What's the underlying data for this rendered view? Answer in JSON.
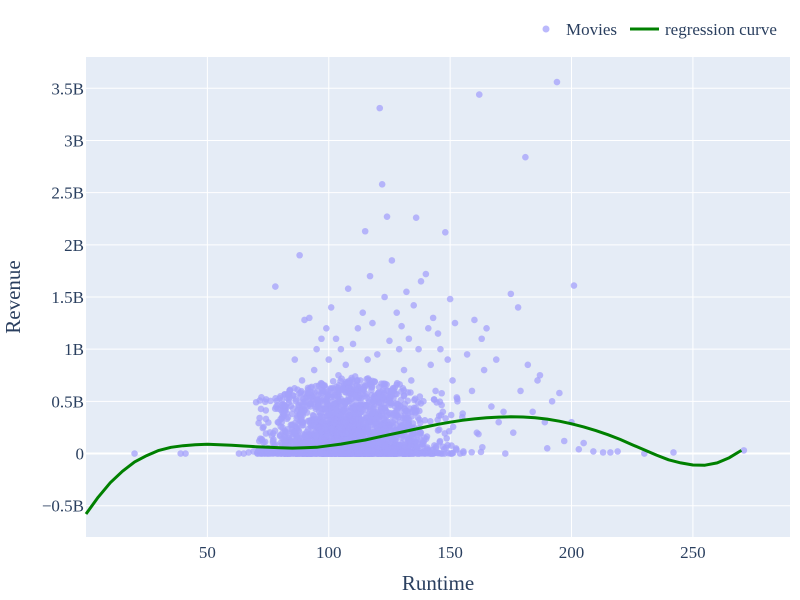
{
  "chart_data": {
    "type": "scatter",
    "title": "",
    "xlabel": "Runtime",
    "ylabel": "Revenue",
    "xlim": [
      0,
      290
    ],
    "ylim": [
      -800000000,
      3800000000
    ],
    "x_ticks": [
      {
        "value": 50,
        "label": "50"
      },
      {
        "value": 100,
        "label": "100"
      },
      {
        "value": 150,
        "label": "150"
      },
      {
        "value": 200,
        "label": "200"
      },
      {
        "value": 250,
        "label": "250"
      }
    ],
    "y_ticks": [
      {
        "value": -500000000,
        "label": "−0.5B"
      },
      {
        "value": 0,
        "label": "0"
      },
      {
        "value": 500000000,
        "label": "0.5B"
      },
      {
        "value": 1000000000,
        "label": "1B"
      },
      {
        "value": 1500000000,
        "label": "1.5B"
      },
      {
        "value": 2000000000,
        "label": "2B"
      },
      {
        "value": 2500000000,
        "label": "2.5B"
      },
      {
        "value": 3000000000,
        "label": "3B"
      },
      {
        "value": 3500000000,
        "label": "3.5B"
      }
    ],
    "grid": true,
    "legend": {
      "position": "top-right",
      "orientation": "horizontal"
    },
    "colors": {
      "plot_bg": "#e5ecf6",
      "grid": "#ffffff",
      "points": "#a4a2fb",
      "curve": "#008000",
      "text": "#2a3f5f"
    },
    "series": [
      {
        "name": "Movies",
        "kind": "markers",
        "points": [
          [
            20,
            0
          ],
          [
            39,
            0
          ],
          [
            41,
            0
          ],
          [
            63,
            0
          ],
          [
            65,
            0
          ],
          [
            67,
            0.01
          ],
          [
            69,
            0.02
          ],
          [
            71,
            0.03
          ],
          [
            73,
            0.01
          ],
          [
            75,
            0.05
          ],
          [
            77,
            0.12
          ],
          [
            78,
            1.6
          ],
          [
            79,
            0.3
          ],
          [
            80,
            0.02
          ],
          [
            81,
            0.2
          ],
          [
            82,
            0.45
          ],
          [
            83,
            0.05
          ],
          [
            84,
            0.6
          ],
          [
            85,
            0.38
          ],
          [
            86,
            0.9
          ],
          [
            87,
            0.15
          ],
          [
            88,
            1.9
          ],
          [
            89,
            0.7
          ],
          [
            90,
            1.28
          ],
          [
            91,
            0.55
          ],
          [
            92,
            1.3
          ],
          [
            93,
            0.25
          ],
          [
            94,
            0.8
          ],
          [
            95,
            1.0
          ],
          [
            96,
            0.4
          ],
          [
            97,
            1.1
          ],
          [
            98,
            0.65
          ],
          [
            99,
            1.2
          ],
          [
            100,
            0.9
          ],
          [
            101,
            1.4
          ],
          [
            102,
            0.3
          ],
          [
            103,
            1.1
          ],
          [
            104,
            0.75
          ],
          [
            105,
            1.0
          ],
          [
            106,
            0.5
          ],
          [
            107,
            0.85
          ],
          [
            108,
            1.58
          ],
          [
            109,
            0.6
          ],
          [
            110,
            1.05
          ],
          [
            111,
            0.4
          ],
          [
            112,
            1.2
          ],
          [
            113,
            0.7
          ],
          [
            114,
            1.35
          ],
          [
            115,
            2.13
          ],
          [
            116,
            0.9
          ],
          [
            117,
            1.7
          ],
          [
            118,
            1.25
          ],
          [
            119,
            0.55
          ],
          [
            120,
            0.95
          ],
          [
            121,
            3.31
          ],
          [
            122,
            2.58
          ],
          [
            123,
            1.5
          ],
          [
            124,
            2.27
          ],
          [
            125,
            1.08
          ],
          [
            126,
            1.85
          ],
          [
            127,
            0.6
          ],
          [
            128,
            1.35
          ],
          [
            129,
            1.0
          ],
          [
            130,
            1.22
          ],
          [
            131,
            0.8
          ],
          [
            132,
            1.55
          ],
          [
            133,
            1.1
          ],
          [
            134,
            0.7
          ],
          [
            135,
            1.42
          ],
          [
            136,
            2.26
          ],
          [
            137,
            1.0
          ],
          [
            138,
            1.65
          ],
          [
            139,
            0.5
          ],
          [
            140,
            1.72
          ],
          [
            141,
            1.2
          ],
          [
            142,
            0.85
          ],
          [
            143,
            1.3
          ],
          [
            144,
            0.6
          ],
          [
            145,
            1.15
          ],
          [
            146,
            1.0
          ],
          [
            147,
            0.4
          ],
          [
            148,
            2.12
          ],
          [
            149,
            0.9
          ],
          [
            150,
            1.48
          ],
          [
            151,
            0.7
          ],
          [
            152,
            1.25
          ],
          [
            153,
            0.5
          ],
          [
            155,
            0.35
          ],
          [
            157,
            0.95
          ],
          [
            159,
            0.6
          ],
          [
            160,
            1.28
          ],
          [
            161,
            0.2
          ],
          [
            162,
            3.44
          ],
          [
            163,
            1.1
          ],
          [
            164,
            0.8
          ],
          [
            165,
            1.2
          ],
          [
            167,
            0.45
          ],
          [
            169,
            0.9
          ],
          [
            170,
            0.3
          ],
          [
            172,
            0.4
          ],
          [
            175,
            1.53
          ],
          [
            176,
            0.2
          ],
          [
            178,
            1.4
          ],
          [
            179,
            0.6
          ],
          [
            181,
            2.84
          ],
          [
            182,
            0.85
          ],
          [
            184,
            0.4
          ],
          [
            186,
            0.7
          ],
          [
            187,
            0.75
          ],
          [
            189,
            0.3
          ],
          [
            190,
            0.05
          ],
          [
            192,
            0.5
          ],
          [
            194,
            3.56
          ],
          [
            195,
            0.58
          ],
          [
            197,
            0.12
          ],
          [
            200,
            0.3
          ],
          [
            201,
            1.61
          ],
          [
            203,
            0.04
          ],
          [
            205,
            0.1
          ],
          [
            209,
            0.02
          ],
          [
            213,
            0.01
          ],
          [
            216,
            0.01
          ],
          [
            219,
            0.02
          ],
          [
            230,
            0
          ],
          [
            242,
            0.01
          ],
          [
            271,
            0.03
          ]
        ]
      },
      {
        "name": "regression curve",
        "kind": "line",
        "points": [
          [
            0,
            -0.58
          ],
          [
            5,
            -0.42
          ],
          [
            10,
            -0.28
          ],
          [
            15,
            -0.17
          ],
          [
            20,
            -0.08
          ],
          [
            25,
            -0.02
          ],
          [
            30,
            0.03
          ],
          [
            35,
            0.06
          ],
          [
            40,
            0.075
          ],
          [
            45,
            0.085
          ],
          [
            50,
            0.088
          ],
          [
            55,
            0.085
          ],
          [
            60,
            0.08
          ],
          [
            65,
            0.072
          ],
          [
            70,
            0.065
          ],
          [
            75,
            0.06
          ],
          [
            80,
            0.055
          ],
          [
            85,
            0.052
          ],
          [
            90,
            0.055
          ],
          [
            95,
            0.06
          ],
          [
            100,
            0.075
          ],
          [
            105,
            0.09
          ],
          [
            110,
            0.11
          ],
          [
            115,
            0.13
          ],
          [
            120,
            0.155
          ],
          [
            125,
            0.18
          ],
          [
            130,
            0.205
          ],
          [
            135,
            0.23
          ],
          [
            140,
            0.255
          ],
          [
            145,
            0.28
          ],
          [
            150,
            0.3
          ],
          [
            155,
            0.318
          ],
          [
            160,
            0.332
          ],
          [
            165,
            0.342
          ],
          [
            170,
            0.349
          ],
          [
            175,
            0.352
          ],
          [
            180,
            0.35
          ],
          [
            185,
            0.343
          ],
          [
            190,
            0.33
          ],
          [
            195,
            0.31
          ],
          [
            200,
            0.285
          ],
          [
            205,
            0.255
          ],
          [
            210,
            0.22
          ],
          [
            215,
            0.18
          ],
          [
            220,
            0.135
          ],
          [
            225,
            0.085
          ],
          [
            230,
            0.035
          ],
          [
            235,
            -0.015
          ],
          [
            240,
            -0.06
          ],
          [
            245,
            -0.09
          ],
          [
            250,
            -0.11
          ],
          [
            255,
            -0.112
          ],
          [
            260,
            -0.09
          ],
          [
            265,
            -0.04
          ],
          [
            270,
            0.03
          ]
        ]
      }
    ],
    "value_unit": "B"
  }
}
